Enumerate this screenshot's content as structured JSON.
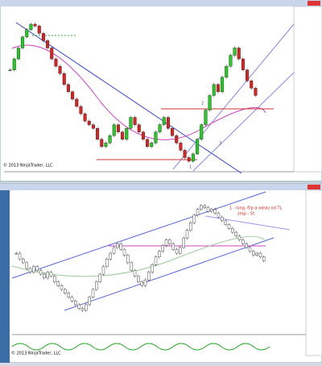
{
  "top": {
    "closes": [
      60,
      66,
      72,
      78,
      82,
      85,
      84,
      80,
      76,
      72,
      66,
      62,
      58,
      52,
      48,
      44,
      40,
      36,
      32,
      30,
      28,
      22,
      18,
      20,
      24,
      30,
      26,
      22,
      28,
      34,
      30,
      26,
      22,
      18,
      20,
      26,
      30,
      34,
      28,
      24,
      20,
      16,
      12,
      10,
      14,
      22,
      30,
      38,
      46,
      52,
      48,
      56,
      62,
      68,
      72,
      66,
      60,
      54,
      50,
      46
    ],
    "labels": [
      "1",
      "2",
      "3"
    ],
    "copyright": "© 2013 NinjaTrader, LLC"
  },
  "bottom": {
    "closes": [
      55,
      52,
      50,
      47,
      45,
      48,
      46,
      44,
      42,
      45,
      43,
      40,
      38,
      36,
      34,
      32,
      30,
      28,
      26,
      25,
      28,
      32,
      36,
      40,
      44,
      48,
      52,
      55,
      58,
      60,
      57,
      54,
      50,
      46,
      43,
      40,
      38,
      41,
      45,
      49,
      53,
      56,
      59,
      62,
      60,
      57,
      55,
      58,
      63,
      67,
      71,
      75,
      78,
      80,
      79,
      77,
      78,
      76,
      74,
      72,
      70,
      68,
      66,
      64,
      62,
      60,
      58,
      56,
      54,
      55,
      53,
      51
    ],
    "note": [
      "1 - long, flip a odraz od TL",
      "stop - 5t."
    ],
    "copyright": "© 2013 NinjaTrader, LLC"
  }
}
